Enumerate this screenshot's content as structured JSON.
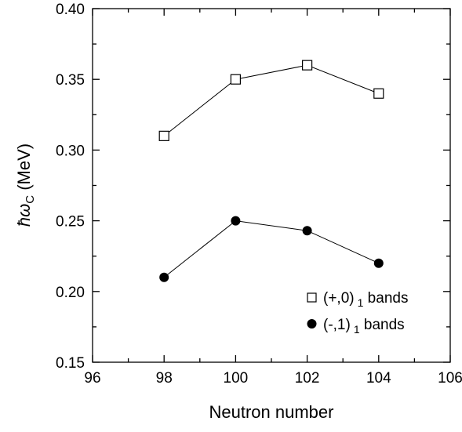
{
  "chart_data": {
    "type": "line",
    "xlabel": "Neutron number",
    "ylabel_main": "ħω",
    "ylabel_sub": "C",
    "ylabel_unit": " (MeV)",
    "xlim": [
      96,
      106
    ],
    "ylim": [
      0.15,
      0.4
    ],
    "x_ticks": [
      96,
      98,
      100,
      102,
      104,
      106
    ],
    "x_minor_ticks": [
      97,
      99,
      101,
      103,
      105
    ],
    "y_ticks": [
      0.15,
      0.2,
      0.25,
      0.3,
      0.35,
      0.4
    ],
    "y_minor_ticks": [
      0.175,
      0.225,
      0.275,
      0.325,
      0.375
    ],
    "x_tick_labels": [
      "96",
      "98",
      "100",
      "102",
      "104",
      "106"
    ],
    "y_tick_labels": [
      "0.15",
      "0.20",
      "0.25",
      "0.30",
      "0.35",
      "0.40"
    ],
    "grid": false,
    "legend_placement": "bottom-right",
    "x": [
      98,
      100,
      102,
      104
    ],
    "series": [
      {
        "name": "(+,0) 1 bands",
        "legend_prefix": "(+,0)",
        "legend_sub": "1",
        "legend_suffix": " bands",
        "marker": "open-square",
        "values": [
          0.31,
          0.35,
          0.36,
          0.34
        ]
      },
      {
        "name": "(-,1) 1 bands",
        "legend_prefix": "(-,1)",
        "legend_sub": "1",
        "legend_suffix": " bands",
        "marker": "filled-circle",
        "values": [
          0.21,
          0.25,
          0.243,
          0.22
        ]
      }
    ]
  }
}
